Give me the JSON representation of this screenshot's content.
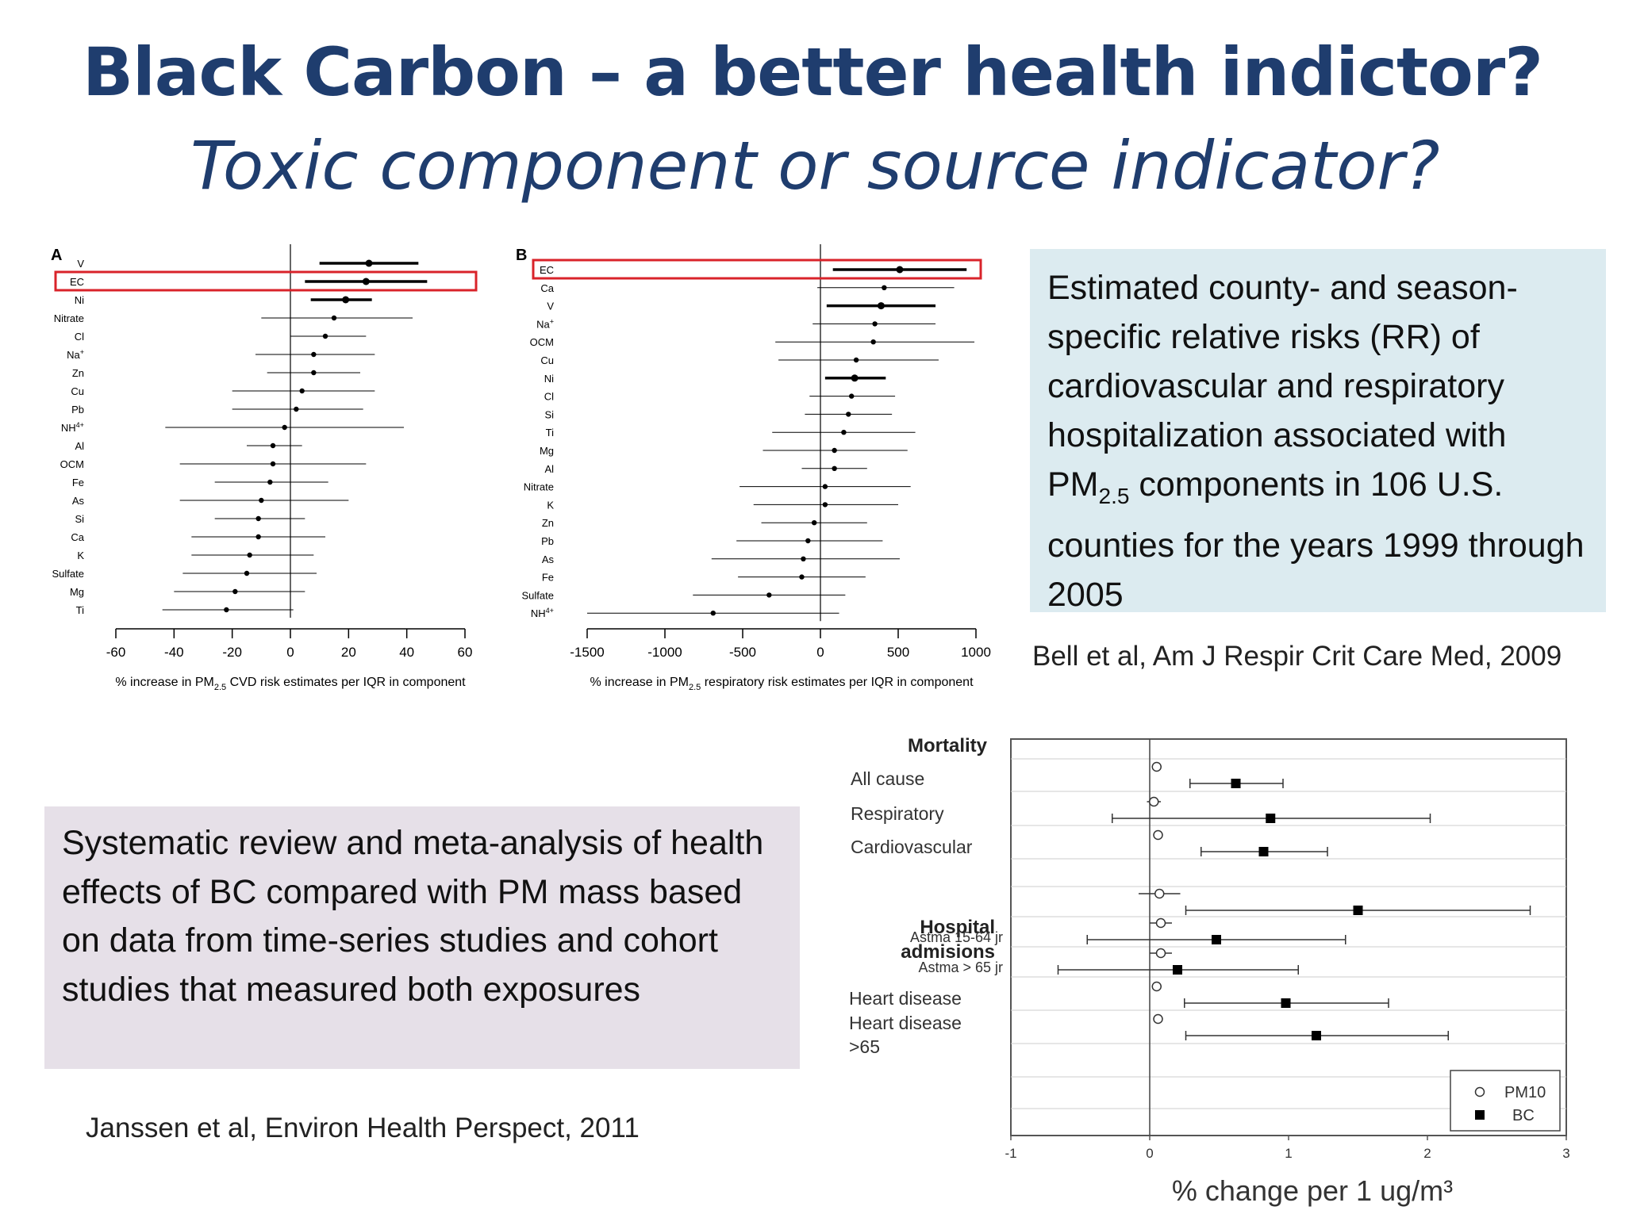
{
  "slide": {
    "title": "Black Carbon – a better health indictor?",
    "subtitle": "Toxic component or source indicator?",
    "bell_text_1": "Estimated county- and season-specific relative risks (RR) of cardiovascular and respiratory hospitalization associated with ",
    "bell_pm": "PM",
    "bell_sub": "2.5",
    "bell_text_2": " components in 106 U.S. counties for the years 1999 through 2005",
    "bell_cite": "Bell et al, Am J Respir Crit Care Med, 2009",
    "janssen_text": "Systematic review and meta-analysis of health effects of BC compared with PM mass based on data from time-series studies and cohort studies that measured both exposures",
    "janssen_cite": "Janssen et al, Environ Health Perspect, 2011"
  },
  "chart_data": [
    {
      "type": "scatter",
      "panel_label": "A",
      "xlabel_pre": "% increase in PM",
      "xlabel_sub": "2.5",
      "xlabel_post": " CVD risk estimates per IQR in component",
      "xlim": [
        -60,
        60
      ],
      "xticks": [
        "-60",
        "-40",
        "-20",
        "0",
        "20",
        "40",
        "60"
      ],
      "highlighted": "EC",
      "points": [
        {
          "label": "V",
          "est": 27,
          "lo": 10,
          "hi": 44,
          "bold": true
        },
        {
          "label": "EC",
          "est": 26,
          "lo": 5,
          "hi": 47,
          "bold": true
        },
        {
          "label": "Ni",
          "est": 19,
          "lo": 7,
          "hi": 28,
          "bold": true
        },
        {
          "label": "Nitrate",
          "est": 15,
          "lo": -10,
          "hi": 42,
          "bold": false
        },
        {
          "label": "Cl",
          "est": 12,
          "lo": 0,
          "hi": 26,
          "bold": false
        },
        {
          "label": "Na+",
          "est": 8,
          "lo": -12,
          "hi": 29,
          "bold": false
        },
        {
          "label": "Zn",
          "est": 8,
          "lo": -8,
          "hi": 24,
          "bold": false
        },
        {
          "label": "Cu",
          "est": 4,
          "lo": -20,
          "hi": 29,
          "bold": false
        },
        {
          "label": "Pb",
          "est": 2,
          "lo": -20,
          "hi": 25,
          "bold": false
        },
        {
          "label": "NH4+",
          "est": -2,
          "lo": -43,
          "hi": 39,
          "bold": false
        },
        {
          "label": "Al",
          "est": -6,
          "lo": -15,
          "hi": 4,
          "bold": false
        },
        {
          "label": "OCM",
          "est": -6,
          "lo": -38,
          "hi": 26,
          "bold": false
        },
        {
          "label": "Fe",
          "est": -7,
          "lo": -26,
          "hi": 13,
          "bold": false
        },
        {
          "label": "As",
          "est": -10,
          "lo": -38,
          "hi": 20,
          "bold": false
        },
        {
          "label": "Si",
          "est": -11,
          "lo": -26,
          "hi": 5,
          "bold": false
        },
        {
          "label": "Ca",
          "est": -11,
          "lo": -34,
          "hi": 12,
          "bold": false
        },
        {
          "label": "K",
          "est": -14,
          "lo": -34,
          "hi": 8,
          "bold": false
        },
        {
          "label": "Sulfate",
          "est": -15,
          "lo": -37,
          "hi": 9,
          "bold": false
        },
        {
          "label": "Mg",
          "est": -19,
          "lo": -40,
          "hi": 5,
          "bold": false
        },
        {
          "label": "Ti",
          "est": -22,
          "lo": -44,
          "hi": 1,
          "bold": false
        }
      ]
    },
    {
      "type": "scatter",
      "panel_label": "B",
      "xlabel_pre": "% increase in PM",
      "xlabel_sub": "2.5",
      "xlabel_post": " respiratory risk estimates per IQR in component",
      "xlim": [
        -1500,
        1000
      ],
      "xticks": [
        "-1500",
        "-1000",
        "-500",
        "0",
        "500",
        "1000"
      ],
      "highlighted": "EC",
      "points": [
        {
          "label": "EC",
          "est": 510,
          "lo": 80,
          "hi": 940,
          "bold": true
        },
        {
          "label": "Ca",
          "est": 410,
          "lo": -20,
          "hi": 860,
          "bold": false
        },
        {
          "label": "V",
          "est": 390,
          "lo": 40,
          "hi": 740,
          "bold": true
        },
        {
          "label": "Na+",
          "est": 350,
          "lo": -50,
          "hi": 740,
          "bold": false
        },
        {
          "label": "OCM",
          "est": 340,
          "lo": -290,
          "hi": 990,
          "bold": false
        },
        {
          "label": "Cu",
          "est": 230,
          "lo": -270,
          "hi": 760,
          "bold": false
        },
        {
          "label": "Ni",
          "est": 220,
          "lo": 30,
          "hi": 420,
          "bold": true
        },
        {
          "label": "Cl",
          "est": 200,
          "lo": -70,
          "hi": 480,
          "bold": false
        },
        {
          "label": "Si",
          "est": 180,
          "lo": -100,
          "hi": 460,
          "bold": false
        },
        {
          "label": "Ti",
          "est": 150,
          "lo": -310,
          "hi": 610,
          "bold": false
        },
        {
          "label": "Mg",
          "est": 90,
          "lo": -370,
          "hi": 560,
          "bold": false
        },
        {
          "label": "Al",
          "est": 90,
          "lo": -120,
          "hi": 300,
          "bold": false
        },
        {
          "label": "Nitrate",
          "est": 30,
          "lo": -520,
          "hi": 580,
          "bold": false
        },
        {
          "label": "K",
          "est": 30,
          "lo": -430,
          "hi": 500,
          "bold": false
        },
        {
          "label": "Zn",
          "est": -40,
          "lo": -380,
          "hi": 300,
          "bold": false
        },
        {
          "label": "Pb",
          "est": -80,
          "lo": -540,
          "hi": 400,
          "bold": false
        },
        {
          "label": "As",
          "est": -110,
          "lo": -700,
          "hi": 510,
          "bold": false
        },
        {
          "label": "Fe",
          "est": -120,
          "lo": -530,
          "hi": 290,
          "bold": false
        },
        {
          "label": "Sulfate",
          "est": -330,
          "lo": -820,
          "hi": 160,
          "bold": false
        },
        {
          "label": "NH4+",
          "est": -690,
          "lo": -1500,
          "hi": 120,
          "bold": false
        }
      ]
    },
    {
      "type": "scatter",
      "xlabel": "% change per 1 ug/m³",
      "xlim": [
        -1,
        3
      ],
      "xticks": [
        "-1",
        "0",
        "1",
        "2",
        "3"
      ],
      "legend": [
        {
          "name": "PM10",
          "marker": "open-circle"
        },
        {
          "name": "BC",
          "marker": "filled-square"
        }
      ],
      "legend_position": "bottom-right",
      "header_mortality": "Mortality",
      "header_hospital": "Hospital admisions",
      "groups": [
        {
          "label": "All cause",
          "pm10": {
            "est": 0.05,
            "lo": 0.05,
            "hi": 0.05
          },
          "bc": {
            "est": 0.62,
            "lo": 0.29,
            "hi": 0.96
          }
        },
        {
          "label": "Respiratory",
          "pm10": {
            "est": 0.03,
            "lo": -0.02,
            "hi": 0.08
          },
          "bc": {
            "est": 0.87,
            "lo": -0.27,
            "hi": 2.02
          }
        },
        {
          "label": "Cardiovascular",
          "pm10": {
            "est": 0.06,
            "lo": 0.06,
            "hi": 0.06
          },
          "bc": {
            "est": 0.82,
            "lo": 0.37,
            "hi": 1.28
          }
        },
        {
          "label": "",
          "pm10": {
            "est": 0.07,
            "lo": -0.08,
            "hi": 0.22
          },
          "bc": {
            "est": 1.5,
            "lo": 0.26,
            "hi": 2.74
          }
        },
        {
          "label": "Astma 15-64 jr",
          "pm10": {
            "est": 0.08,
            "lo": 0.0,
            "hi": 0.16
          },
          "bc": {
            "est": 0.48,
            "lo": -0.45,
            "hi": 1.41
          }
        },
        {
          "label": "Astma > 65 jr",
          "pm10": {
            "est": 0.08,
            "lo": 0.0,
            "hi": 0.16
          },
          "bc": {
            "est": 0.2,
            "lo": -0.66,
            "hi": 1.07
          }
        },
        {
          "label": "Heart disease",
          "pm10": {
            "est": 0.05,
            "lo": 0.02,
            "hi": 0.08
          },
          "bc": {
            "est": 0.98,
            "lo": 0.25,
            "hi": 1.72
          }
        },
        {
          "label": "Heart disease >65",
          "pm10": {
            "est": 0.06,
            "lo": 0.06,
            "hi": 0.06
          },
          "bc": {
            "est": 1.2,
            "lo": 0.26,
            "hi": 2.15
          }
        }
      ]
    }
  ]
}
